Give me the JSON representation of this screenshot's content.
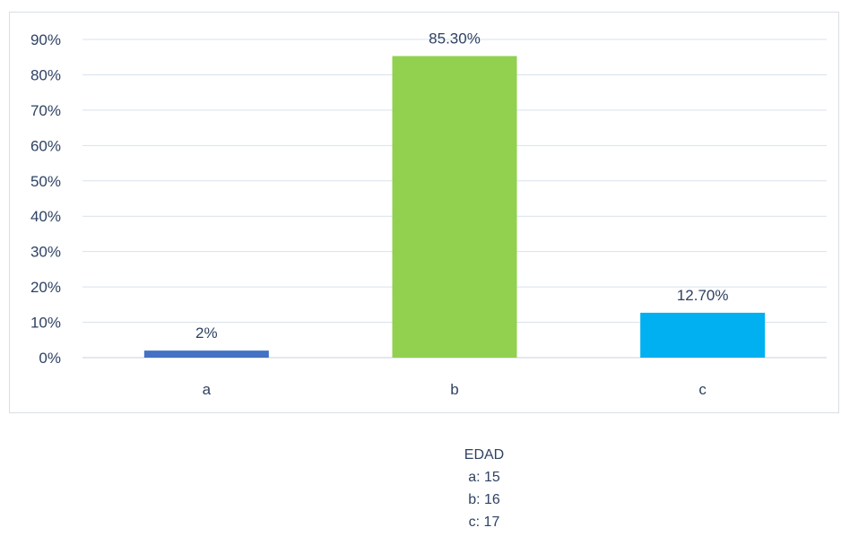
{
  "chart_data": {
    "type": "bar",
    "categories": [
      "a",
      "b",
      "c"
    ],
    "values": [
      2,
      85.3,
      12.7
    ],
    "data_labels": [
      "2%",
      "85.30%",
      "12.70%"
    ],
    "bar_colors": [
      "#4472c4",
      "#92d050",
      "#00b0f0"
    ],
    "ylim": [
      0,
      90
    ],
    "yticks": [
      0,
      10,
      20,
      30,
      40,
      50,
      60,
      70,
      80,
      90
    ],
    "ytick_labels": [
      "0%",
      "10%",
      "20%",
      "30%",
      "40%",
      "50%",
      "60%",
      "70%",
      "80%",
      "90%"
    ],
    "grid": true,
    "legend": false
  },
  "notes": {
    "title": "EDAD",
    "lines": [
      "a: 15",
      "b: 16",
      "c: 17"
    ]
  }
}
